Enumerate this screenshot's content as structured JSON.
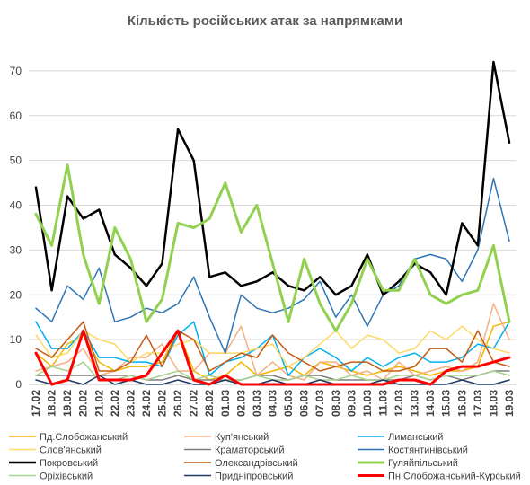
{
  "chart_data": {
    "type": "line",
    "title": "Кількість російських атак за напрямками",
    "xlabel": "",
    "ylabel": "",
    "ylim": [
      0,
      75
    ],
    "yticks": [
      0,
      10,
      20,
      30,
      40,
      50,
      60,
      70
    ],
    "grid": true,
    "legend_position": "bottom",
    "x": [
      "17.02",
      "18.02",
      "19.02",
      "20.02",
      "21.02",
      "22.02",
      "23.02",
      "24.02",
      "25.02",
      "26.02",
      "27.02",
      "28.02",
      "01.03",
      "02.03",
      "03.03",
      "04.03",
      "05.03",
      "06.03",
      "07.03",
      "08.03",
      "09.03",
      "10.03",
      "11.03",
      "12.03",
      "13.03",
      "14.03",
      "15.03",
      "16.03",
      "17.03",
      "18.03",
      "19.03"
    ],
    "series": [
      {
        "name": "Пд.Слобожанський",
        "color": "#F4B400",
        "width": 1.5,
        "values": [
          7,
          4,
          9,
          11,
          5,
          3,
          4,
          4,
          5,
          12,
          3,
          1,
          2,
          5,
          2,
          3,
          4,
          2,
          5,
          4,
          3,
          2,
          3,
          4,
          3,
          2,
          3,
          3,
          4,
          13,
          14
        ]
      },
      {
        "name": "Куп'янський",
        "color": "#F4B183",
        "width": 1.5,
        "values": [
          3,
          4,
          5,
          8,
          2,
          3,
          6,
          6,
          9,
          3,
          3,
          7,
          7,
          13,
          2,
          5,
          2,
          1,
          5,
          5,
          2,
          3,
          1,
          5,
          2,
          3,
          4,
          3,
          5,
          18,
          10
        ]
      },
      {
        "name": "Лиманський",
        "color": "#00B0F0",
        "width": 1.5,
        "values": [
          14,
          8,
          8,
          12,
          6,
          6,
          5,
          5,
          4,
          11,
          14,
          2,
          5,
          6,
          8,
          11,
          2,
          6,
          8,
          6,
          3,
          6,
          4,
          6,
          7,
          5,
          5,
          6,
          9,
          8,
          14
        ]
      },
      {
        "name": "Слов'янський",
        "color": "#FFD966",
        "width": 1.5,
        "values": [
          11,
          6,
          7,
          12,
          10,
          9,
          5,
          7,
          7,
          9,
          10,
          7,
          7,
          7,
          8,
          9,
          4,
          6,
          9,
          12,
          8,
          11,
          10,
          7,
          8,
          12,
          10,
          13,
          10,
          8,
          7
        ]
      },
      {
        "name": "Краматорський",
        "color": "#7F7F7F",
        "width": 1.5,
        "values": [
          2,
          2,
          2,
          2,
          2,
          2,
          2,
          1,
          1,
          2,
          1,
          1,
          1,
          1,
          2,
          2,
          1,
          2,
          2,
          1,
          1,
          1,
          1,
          1,
          2,
          1,
          2,
          1,
          2,
          3,
          3
        ]
      },
      {
        "name": "Костянтинівський",
        "color": "#2E75B6",
        "width": 1.5,
        "values": [
          17,
          14,
          22,
          19,
          26,
          14,
          15,
          17,
          16,
          18,
          24,
          15,
          7,
          20,
          17,
          16,
          17,
          19,
          23,
          15,
          20,
          13,
          20,
          22,
          28,
          29,
          28,
          23,
          30,
          46,
          32
        ]
      },
      {
        "name": "Покровський",
        "color": "#000000",
        "width": 2.5,
        "values": [
          44,
          21,
          42,
          37,
          39,
          29,
          26,
          22,
          27,
          57,
          50,
          24,
          25,
          22,
          23,
          25,
          22,
          21,
          24,
          20,
          22,
          29,
          20,
          23,
          27,
          25,
          20,
          36,
          31,
          72,
          54
        ]
      },
      {
        "name": "Олександрівський",
        "color": "#C55A11",
        "width": 1.5,
        "values": [
          8,
          6,
          10,
          14,
          3,
          3,
          5,
          11,
          4,
          12,
          10,
          3,
          5,
          7,
          6,
          11,
          7,
          5,
          3,
          4,
          5,
          5,
          3,
          3,
          4,
          8,
          8,
          5,
          12,
          5,
          4
        ]
      },
      {
        "name": "Гуляйпільський",
        "color": "#92D050",
        "width": 3,
        "values": [
          38,
          31,
          49,
          29,
          18,
          35,
          28,
          14,
          19,
          36,
          35,
          37,
          45,
          34,
          40,
          27,
          14,
          28,
          18,
          12,
          18,
          28,
          21,
          21,
          28,
          20,
          18,
          20,
          21,
          31,
          14
        ]
      },
      {
        "name": "Оріхівський",
        "color": "#A9D18E",
        "width": 1.5,
        "values": [
          2,
          4,
          3,
          5,
          1,
          1,
          2,
          1,
          2,
          3,
          1,
          2,
          1,
          1,
          2,
          1,
          1,
          2,
          1,
          1,
          2,
          1,
          1,
          2,
          2,
          1,
          2,
          2,
          2,
          3,
          2
        ]
      },
      {
        "name": "Придніпровський",
        "color": "#1F3864",
        "width": 1.5,
        "values": [
          1,
          0,
          1,
          0,
          2,
          0,
          1,
          0,
          0,
          1,
          0,
          0,
          1,
          0,
          0,
          1,
          0,
          0,
          1,
          0,
          0,
          0,
          1,
          0,
          0,
          0,
          0,
          1,
          0,
          0,
          1
        ]
      },
      {
        "name": "Пн.Слобожанський-Курський",
        "color": "#FF0000",
        "width": 3,
        "values": [
          7,
          0,
          1,
          12,
          1,
          1,
          1,
          2,
          7,
          12,
          1,
          0,
          2,
          0,
          0,
          0,
          0,
          0,
          0,
          0,
          0,
          0,
          0,
          1,
          1,
          0,
          3,
          4,
          4,
          5,
          6
        ]
      }
    ]
  }
}
